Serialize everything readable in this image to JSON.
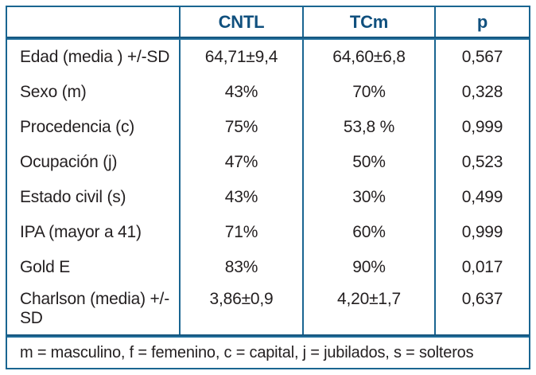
{
  "chart_data": {
    "type": "table",
    "title": "",
    "columns": [
      "",
      "CNTL",
      "TCm",
      "p"
    ],
    "rows": [
      {
        "label": "Edad (media ) +/-SD",
        "cntl": "64,71±9,4",
        "tcm": "64,60±6,8",
        "p": "0,567"
      },
      {
        "label": "Sexo (m)",
        "cntl": "43%",
        "tcm": "70%",
        "p": "0,328"
      },
      {
        "label": "Procedencia (c)",
        "cntl": "75%",
        "tcm": "53,8 %",
        "p": "0,999"
      },
      {
        "label": "Ocupación (j)",
        "cntl": "47%",
        "tcm": "50%",
        "p": "0,523"
      },
      {
        "label": "Estado civil (s)",
        "cntl": "43%",
        "tcm": "30%",
        "p": "0,499"
      },
      {
        "label": "IPA (mayor a 41)",
        "cntl": "71%",
        "tcm": "60%",
        "p": "0,999"
      },
      {
        "label": "Gold E",
        "cntl": "83%",
        "tcm": "90%",
        "p": "0,017"
      },
      {
        "label": "Charlson (media) +/-SD",
        "cntl": "3,86±0,9",
        "tcm": "4,20±1,7",
        "p": "0,637"
      }
    ],
    "footnote": "m = masculino, f = femenino, c = capital, j = jubilados, s = solteros"
  },
  "colors": {
    "rule_blue": "#1a6591",
    "header_text_blue": "#10507e",
    "body_text": "#231f20",
    "background": "#ffffff"
  }
}
